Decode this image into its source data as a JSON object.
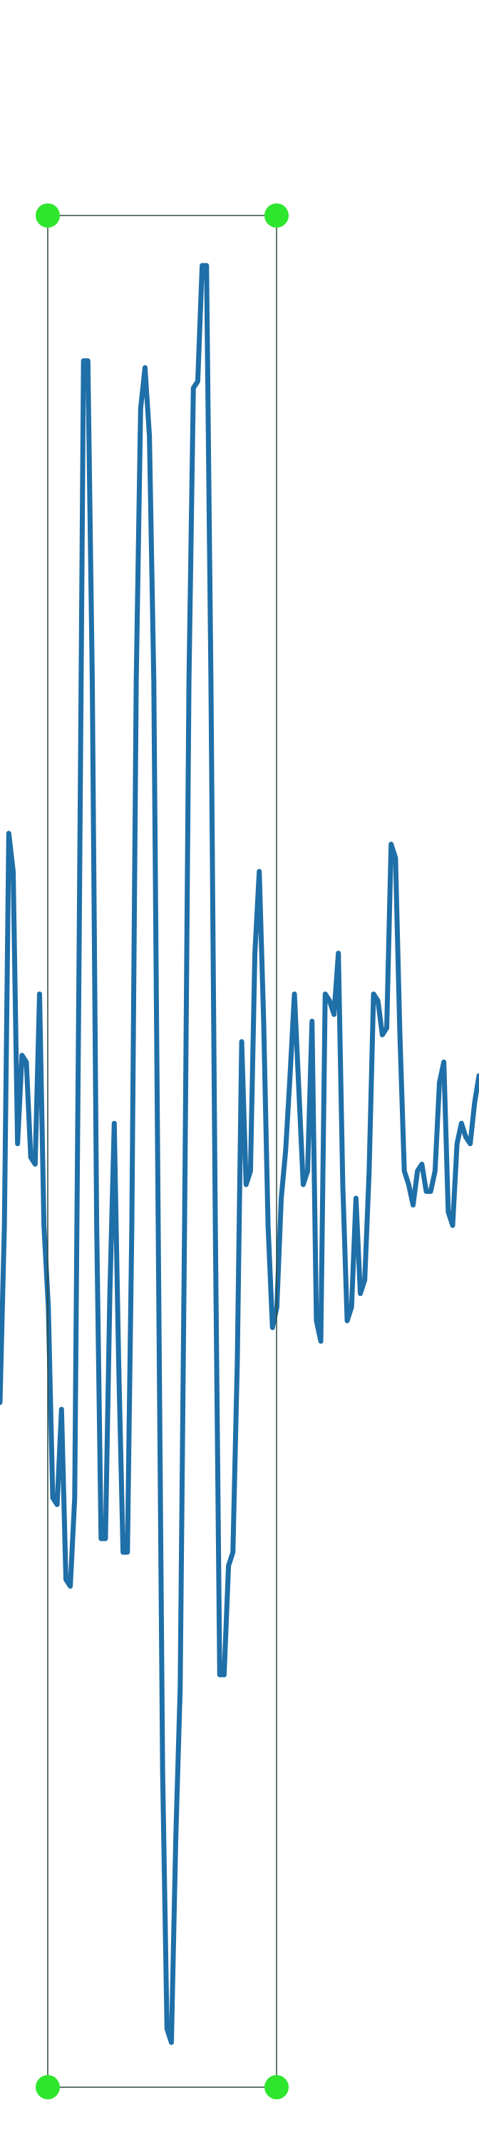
{
  "chart_data": {
    "type": "line",
    "color": "#1f6fa8",
    "ylim": [
      -78.8,
      78
    ],
    "values": [
      -25,
      -12,
      16.8,
      14,
      -6,
      0.5,
      0,
      -7,
      -7.5,
      5,
      -12,
      -18,
      -32,
      -32.5,
      -25.5,
      -38,
      -38.5,
      -32,
      8,
      51.5,
      51.5,
      28,
      -12,
      -35,
      -35,
      -17,
      -4.5,
      -22,
      -36,
      -36,
      -12,
      28,
      48,
      51,
      46,
      28,
      -12,
      -52,
      -71,
      -72,
      -57,
      -46,
      -12,
      28,
      49.5,
      50,
      58.5,
      58.5,
      28,
      -12,
      -45,
      -45,
      -37,
      -36,
      -22,
      1.5,
      -9,
      -8,
      8,
      14,
      3,
      -12,
      -19.5,
      -18,
      -10,
      -6.5,
      -1,
      5,
      -2,
      -9,
      -8,
      3,
      -19,
      -20.5,
      5,
      4.5,
      3.5,
      8,
      -9,
      -19,
      -18,
      -10,
      -17,
      -16,
      -8,
      5,
      4.5,
      2,
      2.5,
      16,
      15,
      2,
      -8,
      -9,
      -10.5,
      -8,
      -7.5,
      -9.5,
      -9.5,
      -8,
      -1.5,
      0,
      -11,
      -12,
      -6,
      -4.5,
      -5.5,
      -6,
      -3,
      -1
    ]
  }
}
